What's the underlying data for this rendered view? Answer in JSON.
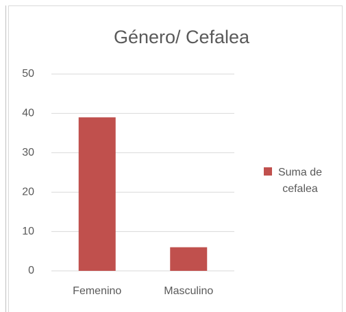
{
  "chart_data": {
    "type": "bar",
    "title": "Género/ Cefalea",
    "categories": [
      "Femenino",
      "Masculino"
    ],
    "series": [
      {
        "name": "Suma de cefalea",
        "color": "#c0504d",
        "values": [
          39,
          6
        ]
      }
    ],
    "ylim": [
      0,
      50
    ],
    "yticks": [
      0,
      10,
      20,
      30,
      40,
      50
    ],
    "grid": true,
    "legend": "right"
  }
}
